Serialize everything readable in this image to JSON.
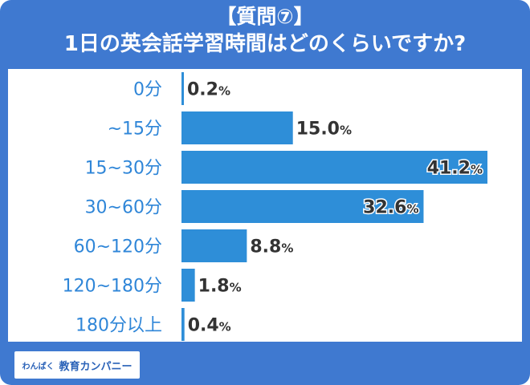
{
  "title": {
    "line1": "【質問⑦】",
    "line2": "1日の英会話学習時間はどのくらいですか?"
  },
  "colors": {
    "background": "#3f79d0",
    "bar": "#2e8ed8",
    "category_text": "#2f86d8",
    "value_text": "#333333"
  },
  "chart_data": {
    "type": "bar",
    "orientation": "horizontal",
    "categories": [
      "0分",
      "~15分",
      "15~30分",
      "30~60分",
      "60~120分",
      "120~180分",
      "180分以上"
    ],
    "values": [
      0.2,
      15.0,
      41.2,
      32.6,
      8.8,
      1.8,
      0.4
    ],
    "value_suffix": "%",
    "xlim": [
      0,
      41.2
    ],
    "grid": false,
    "legend": "none"
  },
  "logo": {
    "brand_small": "わんぱく",
    "brand_main": "教育カンパニー"
  }
}
